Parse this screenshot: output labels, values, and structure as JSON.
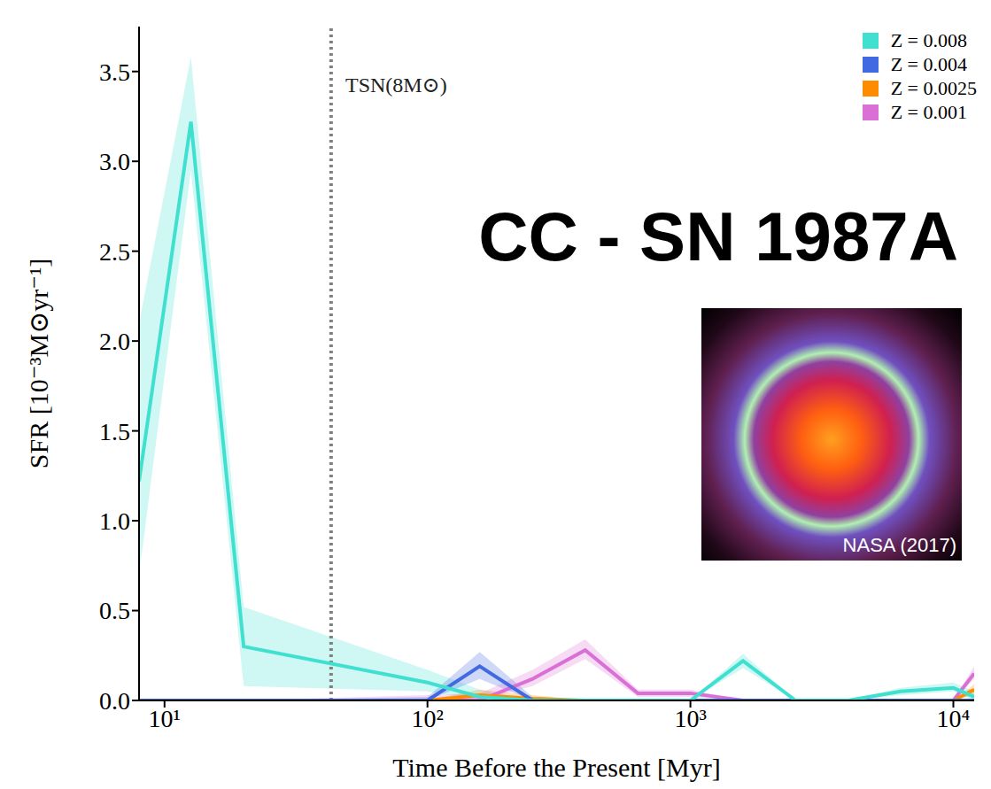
{
  "chart_data": {
    "type": "line",
    "title": "CC - SN 1987A",
    "x_label": "Time Before the Present [Myr]",
    "y_label": "SFR [10⁻³M⊙yr⁻¹]",
    "log": "x",
    "grid": false,
    "legend": "upper right",
    "x": [
      8,
      12.6,
      20,
      100,
      158,
      251,
      398,
      631,
      1000,
      1585,
      2512,
      3981,
      6310,
      10000,
      12000
    ],
    "xlim": [
      8,
      12000
    ],
    "xticks": [
      {
        "value": 10,
        "label": "10¹"
      },
      {
        "value": 100,
        "label": "10²"
      },
      {
        "value": 1000,
        "label": "10³"
      },
      {
        "value": 10000,
        "label": "10⁴"
      }
    ],
    "ylim": [
      0,
      3.75
    ],
    "yticks": [
      {
        "value": 0,
        "label": "0.0"
      },
      {
        "value": 0.5,
        "label": "0.5"
      },
      {
        "value": 1,
        "label": "1.0"
      },
      {
        "value": 1.5,
        "label": "1.5"
      },
      {
        "value": 2,
        "label": "2.0"
      },
      {
        "value": 2.5,
        "label": "2.5"
      },
      {
        "value": 3,
        "label": "3.0"
      },
      {
        "value": 3.5,
        "label": "3.5"
      }
    ],
    "series": [
      {
        "name": "Z = 0.008",
        "color": "#40e0d0",
        "values": [
          1.22,
          3.22,
          0.3,
          0.1,
          0.02,
          0,
          0,
          0,
          0,
          0.22,
          0,
          0,
          0.05,
          0.07,
          0.02
        ],
        "lower": [
          0.7,
          2.95,
          0.08,
          0.05,
          0,
          0,
          0,
          0,
          0,
          0.18,
          0,
          0,
          0.03,
          0.05,
          0
        ],
        "upper": [
          2.1,
          3.58,
          0.52,
          0.17,
          0.06,
          0,
          0,
          0,
          0,
          0.26,
          0,
          0,
          0.07,
          0.1,
          0.05
        ]
      },
      {
        "name": "Z = 0.004",
        "color": "#4169e1",
        "values": [
          0,
          0,
          0,
          0,
          0.19,
          0,
          0,
          0,
          0,
          0,
          0,
          0,
          0,
          0,
          0
        ],
        "lower": [
          0,
          0,
          0,
          0,
          0.12,
          0,
          0,
          0,
          0,
          0,
          0,
          0,
          0,
          0,
          0
        ],
        "upper": [
          0,
          0,
          0,
          0.02,
          0.27,
          0.02,
          0,
          0,
          0,
          0,
          0,
          0,
          0,
          0,
          0
        ]
      },
      {
        "name": "Z = 0.0025",
        "color": "#ff8c00",
        "values": [
          0,
          0,
          0,
          0,
          0.03,
          0.01,
          0,
          0,
          0,
          0,
          0,
          0,
          0,
          0,
          0.06
        ],
        "lower": [
          0,
          0,
          0,
          0,
          0.01,
          0,
          0,
          0,
          0,
          0,
          0,
          0,
          0,
          0,
          0.03
        ],
        "upper": [
          0,
          0,
          0,
          0,
          0.06,
          0.03,
          0,
          0,
          0,
          0,
          0,
          0,
          0,
          0,
          0.09
        ]
      },
      {
        "name": "Z = 0.001",
        "color": "#da70d6",
        "values": [
          0,
          0,
          0,
          0,
          0,
          0.12,
          0.28,
          0.04,
          0.04,
          0,
          0,
          0,
          0,
          0,
          0.15
        ],
        "lower": [
          0,
          0,
          0,
          0,
          0,
          0.08,
          0.23,
          0.02,
          0.02,
          0,
          0,
          0,
          0,
          0,
          0.12
        ],
        "upper": [
          0,
          0,
          0,
          0.03,
          0.04,
          0.17,
          0.34,
          0.06,
          0.06,
          0,
          0,
          0,
          0,
          0,
          0.19
        ]
      }
    ],
    "reference_line": {
      "x": 43,
      "label": "TSN(8M⊙)"
    },
    "image_credit": "NASA (2017)"
  }
}
